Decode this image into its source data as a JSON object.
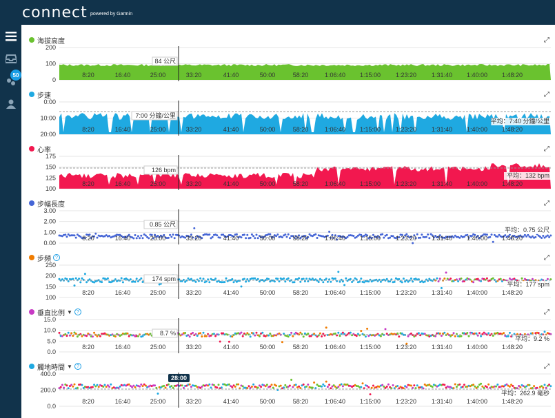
{
  "header": {
    "logo": "connect",
    "powered_by": "powered by Garmin"
  },
  "sidebar": {
    "items": [
      {
        "icon": "menu-icon"
      },
      {
        "icon": "inbox-icon"
      },
      {
        "icon": "connections-icon",
        "badge": "50"
      },
      {
        "icon": "user-icon"
      }
    ]
  },
  "cursor_time": "28:00",
  "x_ticks": [
    "8:20",
    "16:40",
    "25:00",
    "33:20",
    "41:40",
    "50:00",
    "58:20",
    "1:06:40",
    "1:15:00",
    "1:23:20",
    "1:31:40",
    "1:40:00",
    "1:48:20"
  ],
  "panels": [
    {
      "key": "elevation",
      "title": "海拔高度",
      "color": "#6ac22f",
      "yticks": [
        "200",
        "100",
        "0"
      ],
      "tooltip": "84 公尺",
      "avg": "",
      "help": false,
      "caret": false
    },
    {
      "key": "pace",
      "title": "步速",
      "color": "#1fa9e1",
      "yticks": [
        "0:00",
        "10:00",
        "20:00"
      ],
      "tooltip": "7:00 分鐘/公里",
      "avg": "平均：7:40 分鐘/公里",
      "help": false,
      "caret": false
    },
    {
      "key": "hr",
      "title": "心率",
      "color": "#f2184f",
      "yticks": [
        "175",
        "150",
        "125",
        "100"
      ],
      "tooltip": "126 bpm",
      "avg": "平均：132 bpm",
      "help": false,
      "caret": false
    },
    {
      "key": "stride",
      "title": "步幅長度",
      "color": "#4565d6",
      "yticks": [
        "3.00",
        "2.00",
        "1.00",
        "0.00"
      ],
      "tooltip": "0.85 公尺",
      "avg": "平均：0.75 公尺",
      "help": false,
      "caret": false
    },
    {
      "key": "cadence",
      "title": "步頻",
      "color": "#f07c00",
      "yticks": [
        "250",
        "200",
        "150",
        "100"
      ],
      "tooltip": "174 spm",
      "avg": "平均：177 spm",
      "help": true,
      "caret": false
    },
    {
      "key": "vratio",
      "title": "垂直比例",
      "color": "#c73ac4",
      "yticks": [
        "15.0",
        "10.0",
        "5.0",
        "0.0"
      ],
      "tooltip": "8.7 %",
      "avg": "平均：9.2 %",
      "help": true,
      "caret": true
    },
    {
      "key": "gct",
      "title": "觸地時間",
      "color": "#1fa9e1",
      "yticks": [
        "400.0",
        "200.0",
        "0.0"
      ],
      "tooltip": "",
      "avg": "平均：262.9 毫秒",
      "help": true,
      "caret": true
    }
  ],
  "colors": {
    "header_bg": "#11334b",
    "accent": "#1a9de5"
  }
}
